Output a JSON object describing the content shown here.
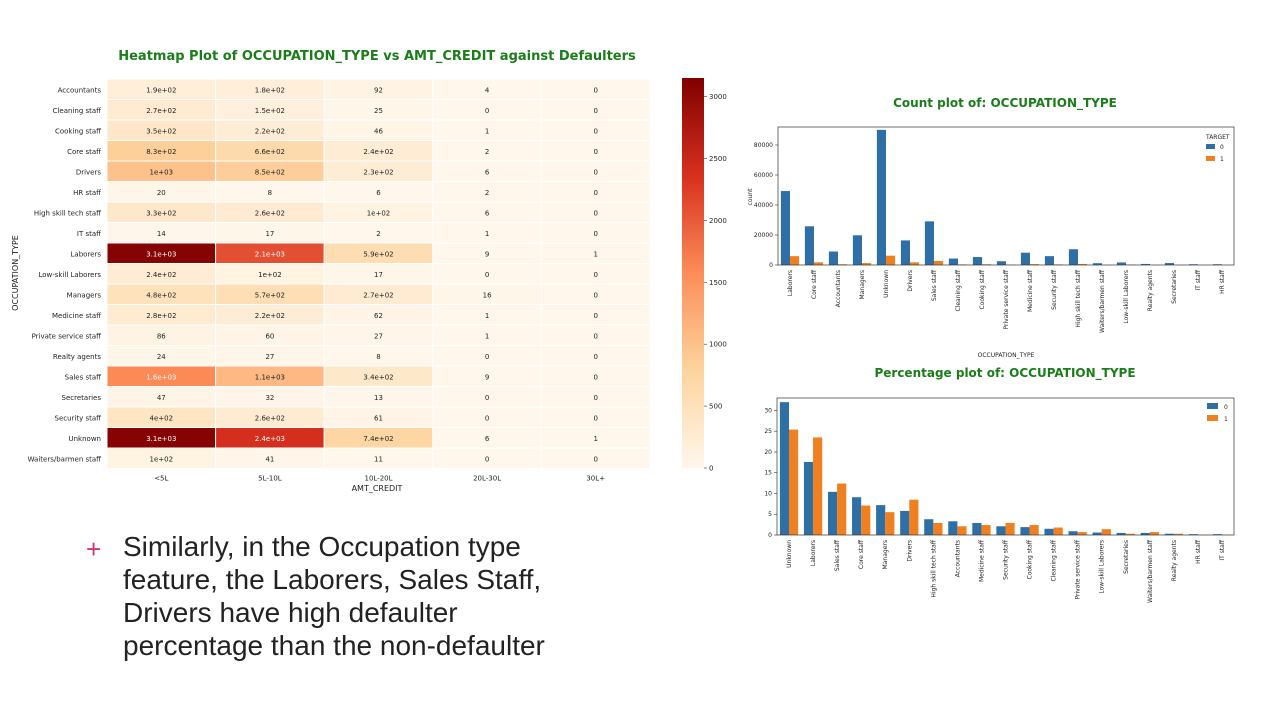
{
  "slide": {
    "bullet_marker": "+",
    "bullet_text": "Similarly, in the Occupation type feature, the Laborers, Sales Staff, Drivers have high defaulter percentage than the non-defaulter"
  },
  "colors": {
    "title": "#1a7d1a",
    "bar0": "#2e6fa6",
    "bar1": "#f07f1f",
    "bullet": "#d0337a"
  },
  "chart_data": [
    {
      "type": "heatmap",
      "title": "Heatmap Plot of OCCUPATION_TYPE vs AMT_CREDIT against Defaulters",
      "xlabel": "AMT_CREDIT",
      "ylabel": "OCCUPATION_TYPE",
      "colormap": "OrRd",
      "xcategories": [
        "<5L",
        "5L-10L",
        "10L-20L",
        "20L-30L",
        "30L+"
      ],
      "ycategories": [
        "Accountants",
        "Cleaning staff",
        "Cooking staff",
        "Core staff",
        "Drivers",
        "HR staff",
        "High skill tech staff",
        "IT staff",
        "Laborers",
        "Low-skill Laborers",
        "Managers",
        "Medicine staff",
        "Private service staff",
        "Realty agents",
        "Sales staff",
        "Secretaries",
        "Security staff",
        "Unknown",
        "Waiters/barmen staff"
      ],
      "values": [
        [
          190,
          180,
          92,
          4,
          0
        ],
        [
          270,
          150,
          25,
          0,
          0
        ],
        [
          350,
          220,
          46,
          1,
          0
        ],
        [
          830,
          660,
          240,
          2,
          0
        ],
        [
          1000,
          850,
          230,
          6,
          0
        ],
        [
          20,
          8,
          6,
          2,
          0
        ],
        [
          330,
          260,
          100,
          6,
          0
        ],
        [
          14,
          17,
          2,
          1,
          0
        ],
        [
          3100,
          2100,
          590,
          9,
          1
        ],
        [
          240,
          100,
          17,
          0,
          0
        ],
        [
          480,
          570,
          270,
          16,
          0
        ],
        [
          280,
          220,
          62,
          1,
          0
        ],
        [
          86,
          60,
          27,
          1,
          0
        ],
        [
          24,
          27,
          8,
          0,
          0
        ],
        [
          1600,
          1100,
          340,
          9,
          0
        ],
        [
          47,
          32,
          13,
          0,
          0
        ],
        [
          400,
          260,
          61,
          0,
          0
        ],
        [
          3100,
          2400,
          740,
          6,
          1
        ],
        [
          100,
          41,
          11,
          0,
          0
        ]
      ],
      "annotations": [
        [
          "1.9e+02",
          "1.8e+02",
          "92",
          "4",
          "0"
        ],
        [
          "2.7e+02",
          "1.5e+02",
          "25",
          "0",
          "0"
        ],
        [
          "3.5e+02",
          "2.2e+02",
          "46",
          "1",
          "0"
        ],
        [
          "8.3e+02",
          "6.6e+02",
          "2.4e+02",
          "2",
          "0"
        ],
        [
          "1e+03",
          "8.5e+02",
          "2.3e+02",
          "6",
          "0"
        ],
        [
          "20",
          "8",
          "6",
          "2",
          "0"
        ],
        [
          "3.3e+02",
          "2.6e+02",
          "1e+02",
          "6",
          "0"
        ],
        [
          "14",
          "17",
          "2",
          "1",
          "0"
        ],
        [
          "3.1e+03",
          "2.1e+03",
          "5.9e+02",
          "9",
          "1"
        ],
        [
          "2.4e+02",
          "1e+02",
          "17",
          "0",
          "0"
        ],
        [
          "4.8e+02",
          "5.7e+02",
          "2.7e+02",
          "16",
          "0"
        ],
        [
          "2.8e+02",
          "2.2e+02",
          "62",
          "1",
          "0"
        ],
        [
          "86",
          "60",
          "27",
          "1",
          "0"
        ],
        [
          "24",
          "27",
          "8",
          "0",
          "0"
        ],
        [
          "1.6e+03",
          "1.1e+03",
          "3.4e+02",
          "9",
          "0"
        ],
        [
          "47",
          "32",
          "13",
          "0",
          "0"
        ],
        [
          "4e+02",
          "2.6e+02",
          "61",
          "0",
          "0"
        ],
        [
          "3.1e+03",
          "2.4e+03",
          "7.4e+02",
          "6",
          "1"
        ],
        [
          "1e+02",
          "41",
          "11",
          "0",
          "0"
        ]
      ],
      "colorbar": {
        "min": 0,
        "max": 3150,
        "ticks": [
          0,
          500,
          1000,
          1500,
          2000,
          2500,
          3000
        ]
      }
    },
    {
      "type": "bar",
      "title": "Count plot of: OCCUPATION_TYPE",
      "xlabel": "OCCUPATION_TYPE",
      "ylabel": "count",
      "legend_title": "TARGET",
      "legend_position": "top-right",
      "ylim": [
        0,
        92000
      ],
      "yticks": [
        0,
        20000,
        40000,
        60000,
        80000
      ],
      "categories": [
        "Laborers",
        "Core staff",
        "Accountants",
        "Managers",
        "Unknown",
        "Drivers",
        "Sales staff",
        "Cleaning staff",
        "Cooking staff",
        "Private service staff",
        "Medicine staff",
        "Security staff",
        "High skill tech staff",
        "Waiters/barmen staff",
        "Low-skill Laborers",
        "Realty agents",
        "Secretaries",
        "IT staff",
        "HR staff"
      ],
      "series": [
        {
          "name": "0",
          "values": [
            49300,
            25800,
            9000,
            19800,
            90100,
            16400,
            29100,
            4300,
            5300,
            2500,
            8200,
            5900,
            10500,
            1200,
            1700,
            700,
            1300,
            500,
            500
          ]
        },
        {
          "name": "1",
          "values": [
            5900,
            1800,
            500,
            1300,
            6200,
            1800,
            2700,
            400,
            500,
            200,
            600,
            400,
            700,
            100,
            300,
            100,
            100,
            30,
            30
          ]
        }
      ]
    },
    {
      "type": "bar",
      "title": "Percentage plot of: OCCUPATION_TYPE",
      "legend_position": "top-right",
      "ylim": [
        0,
        33
      ],
      "yticks": [
        0,
        5,
        10,
        15,
        20,
        25,
        30
      ],
      "categories": [
        "Unknown",
        "Laborers",
        "Sales staff",
        "Core staff",
        "Managers",
        "Drivers",
        "High skill tech staff",
        "Accountants",
        "Medicine staff",
        "Security staff",
        "Cooking staff",
        "Cleaning staff",
        "Private service staff",
        "Low-skill Laborers",
        "Secretaries",
        "Waiters/barmen staff",
        "Realty agents",
        "HR staff",
        "IT staff"
      ],
      "series": [
        {
          "name": "0",
          "values": [
            32.0,
            17.6,
            10.4,
            9.1,
            7.2,
            5.8,
            3.8,
            3.3,
            2.9,
            2.1,
            1.9,
            1.5,
            0.9,
            0.6,
            0.5,
            0.5,
            0.3,
            0.2,
            0.2
          ]
        },
        {
          "name": "1",
          "values": [
            25.4,
            23.5,
            12.4,
            7.1,
            5.5,
            8.5,
            2.9,
            2.1,
            2.4,
            2.9,
            2.4,
            1.8,
            0.7,
            1.4,
            0.3,
            0.7,
            0.3,
            0.1,
            0.1
          ]
        }
      ]
    }
  ]
}
